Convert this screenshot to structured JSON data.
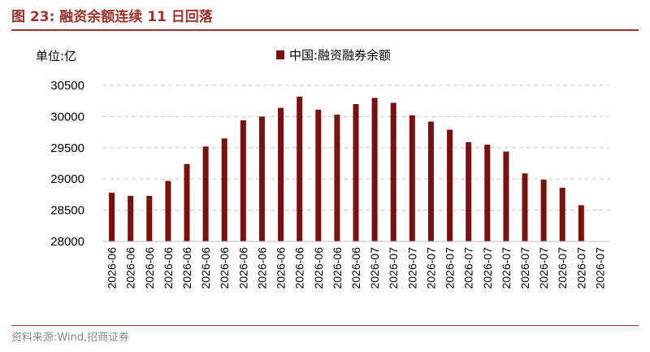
{
  "header": {
    "figure_title": "图 23:  融资余额连续 11 日回落"
  },
  "footer": {
    "source": "资料来源:Wind,招商证券"
  },
  "chart_data": {
    "type": "bar",
    "unit_label": "单位:亿",
    "legend": [
      "中国:融资融券余额"
    ],
    "legend_position": "top",
    "grid": true,
    "ylim": [
      28000,
      30500
    ],
    "yticks": [
      28000,
      28500,
      29000,
      29500,
      30000,
      30500
    ],
    "categories": [
      "2026-06",
      "2026-06",
      "2026-06",
      "2026-06",
      "2026-06",
      "2026-06",
      "2026-06",
      "2026-06",
      "2026-06",
      "2026-06",
      "2026-06",
      "2026-06",
      "2026-06",
      "2026-06",
      "2026-07",
      "2026-07",
      "2026-07",
      "2026-07",
      "2026-07",
      "2026-07",
      "2026-07",
      "2026-07",
      "2026-07",
      "2026-07",
      "2026-07",
      "2026-07",
      "2026-07"
    ],
    "series": [
      {
        "name": "中国:融资融券余额",
        "color": "#7a1010",
        "values": [
          28780,
          28730,
          28730,
          28970,
          29240,
          29520,
          29650,
          29940,
          30000,
          30140,
          30320,
          30110,
          30030,
          30200,
          30300,
          30220,
          30020,
          29920,
          29790,
          29590,
          29550,
          29440,
          29090,
          28990,
          28860,
          28580,
          null
        ]
      }
    ]
  }
}
